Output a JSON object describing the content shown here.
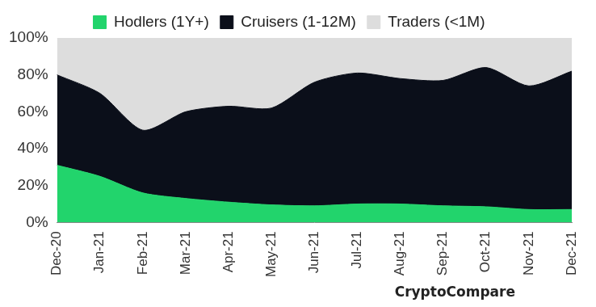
{
  "chart_data": {
    "type": "area",
    "categories": [
      "Dec-20",
      "Jan-21",
      "Feb-21",
      "Mar-21",
      "Apr-21",
      "May-21",
      "Jun-21",
      "Jul-21",
      "Aug-21",
      "Sep-21",
      "Oct-21",
      "Nov-21",
      "Dec-21"
    ],
    "series": [
      {
        "name": "Hodlers (1Y+)",
        "color": "#22d46c",
        "values": [
          31,
          25,
          16,
          13,
          11,
          9.5,
          9,
          10,
          10,
          9,
          8.5,
          7,
          7
        ]
      },
      {
        "name": "Cruisers (1-12M)",
        "color": "#0b0f1a",
        "values": [
          49,
          45,
          34,
          47,
          52,
          52.5,
          67,
          71,
          68,
          68,
          75.5,
          67,
          75
        ]
      },
      {
        "name": "Traders (<1M)",
        "color": "#dddddd",
        "values": [
          20,
          30,
          50,
          40,
          37,
          38,
          24,
          19,
          22,
          23,
          16,
          26,
          18
        ]
      }
    ],
    "ylim": [
      0,
      100
    ],
    "yticks": [
      {
        "value": 0,
        "label": "0%"
      },
      {
        "value": 20,
        "label": "20%"
      },
      {
        "value": 40,
        "label": "40%"
      },
      {
        "value": 60,
        "label": "60%"
      },
      {
        "value": 80,
        "label": "80%"
      },
      {
        "value": 100,
        "label": "100%"
      }
    ],
    "stacked": true,
    "grid": false,
    "legend": "top",
    "annotations": [
      "CryptoCompare"
    ]
  }
}
